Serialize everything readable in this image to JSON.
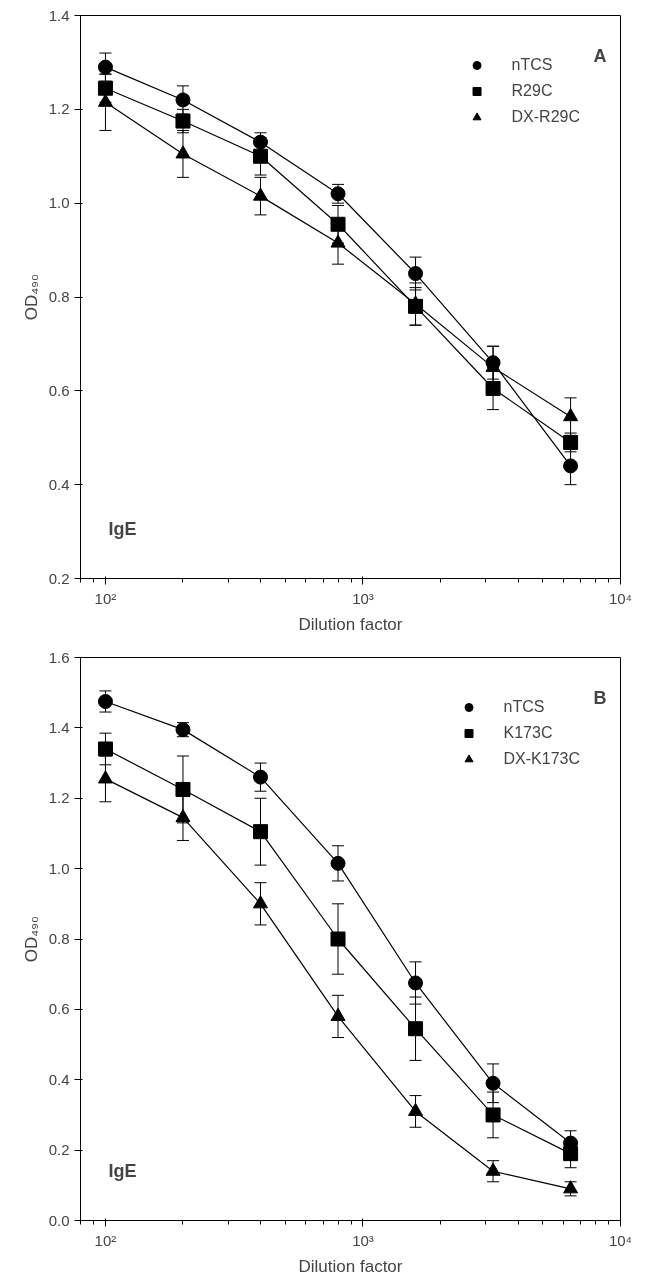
{
  "chart_data": [
    {
      "type": "line",
      "xlabel": "Dilution factor",
      "ylabel": "OD₄₉₀",
      "annotations": [
        "A",
        "IgE"
      ],
      "log": "x",
      "xlim": [
        80,
        10000
      ],
      "ylim": [
        0.2,
        1.4
      ],
      "xticks": [
        {
          "value": 100,
          "label": "10²"
        },
        {
          "value": 1000,
          "label": "10³"
        },
        {
          "value": 10000,
          "label": "10⁴"
        }
      ],
      "yticks": [
        {
          "value": 0.2,
          "label": "0.2"
        },
        {
          "value": 0.4,
          "label": "0.4"
        },
        {
          "value": 0.6,
          "label": "0.6"
        },
        {
          "value": 0.8,
          "label": "0.8"
        },
        {
          "value": 1.0,
          "label": "1.0"
        },
        {
          "value": 1.2,
          "label": "1.2"
        },
        {
          "value": 1.4,
          "label": "1.4"
        }
      ],
      "grid": false,
      "legend": "top right",
      "line_style": "solid",
      "x": [
        100,
        200,
        400,
        800,
        1600,
        3200,
        6400
      ],
      "series": [
        {
          "name": "nTCS",
          "color": "#000000",
          "marker": "circle",
          "values": [
            1.29,
            1.22,
            1.13,
            1.02,
            0.85,
            0.66,
            0.44
          ],
          "errors": [
            0.03,
            0.03,
            0.02,
            0.02,
            0.035,
            0.035,
            0.04
          ]
        },
        {
          "name": "R29C",
          "color": "#000000",
          "marker": "square",
          "values": [
            1.245,
            1.175,
            1.1,
            0.955,
            0.78,
            0.605,
            0.49
          ],
          "errors": [
            0.03,
            0.025,
            0.04,
            0.04,
            0.04,
            0.045,
            0.02
          ]
        },
        {
          "name": "DX-R29C",
          "color": "#000000",
          "marker": "triangle",
          "values": [
            1.215,
            1.105,
            1.015,
            0.915,
            0.785,
            0.65,
            0.545
          ],
          "errors": [
            0.06,
            0.05,
            0.04,
            0.045,
            0.045,
            0.045,
            0.04
          ]
        }
      ]
    },
    {
      "type": "line",
      "xlabel": "Dilution factor",
      "ylabel": "OD₄₉₀",
      "annotations": [
        "B",
        "IgE"
      ],
      "log": "x",
      "xlim": [
        80,
        10000
      ],
      "ylim": [
        0.0,
        1.6
      ],
      "xticks": [
        {
          "value": 100,
          "label": "10²"
        },
        {
          "value": 1000,
          "label": "10³"
        },
        {
          "value": 10000,
          "label": "10⁴"
        }
      ],
      "yticks": [
        {
          "value": 0.0,
          "label": "0.0"
        },
        {
          "value": 0.2,
          "label": "0.2"
        },
        {
          "value": 0.4,
          "label": "0.4"
        },
        {
          "value": 0.6,
          "label": "0.6"
        },
        {
          "value": 0.8,
          "label": "0.8"
        },
        {
          "value": 1.0,
          "label": "1.0"
        },
        {
          "value": 1.2,
          "label": "1.2"
        },
        {
          "value": 1.4,
          "label": "1.4"
        },
        {
          "value": 1.6,
          "label": "1.6"
        }
      ],
      "grid": false,
      "legend": "top right",
      "line_style": "solid",
      "x": [
        100,
        200,
        400,
        800,
        1600,
        3200,
        6400
      ],
      "series": [
        {
          "name": "nTCS",
          "color": "#000000",
          "marker": "circle",
          "values": [
            1.475,
            1.395,
            1.26,
            1.015,
            0.675,
            0.39,
            0.22
          ],
          "errors": [
            0.03,
            0.02,
            0.04,
            0.05,
            0.06,
            0.055,
            0.035
          ]
        },
        {
          "name": "K173C",
          "color": "#000000",
          "marker": "square",
          "values": [
            1.34,
            1.225,
            1.105,
            0.8,
            0.545,
            0.3,
            0.19
          ],
          "errors": [
            0.045,
            0.095,
            0.095,
            0.1,
            0.09,
            0.065,
            0.04
          ]
        },
        {
          "name": "DX-K173C",
          "color": "#000000",
          "marker": "triangle",
          "values": [
            1.255,
            1.145,
            0.9,
            0.58,
            0.31,
            0.14,
            0.09
          ],
          "errors": [
            0.065,
            0.065,
            0.06,
            0.06,
            0.045,
            0.03,
            0.02
          ]
        }
      ]
    }
  ]
}
